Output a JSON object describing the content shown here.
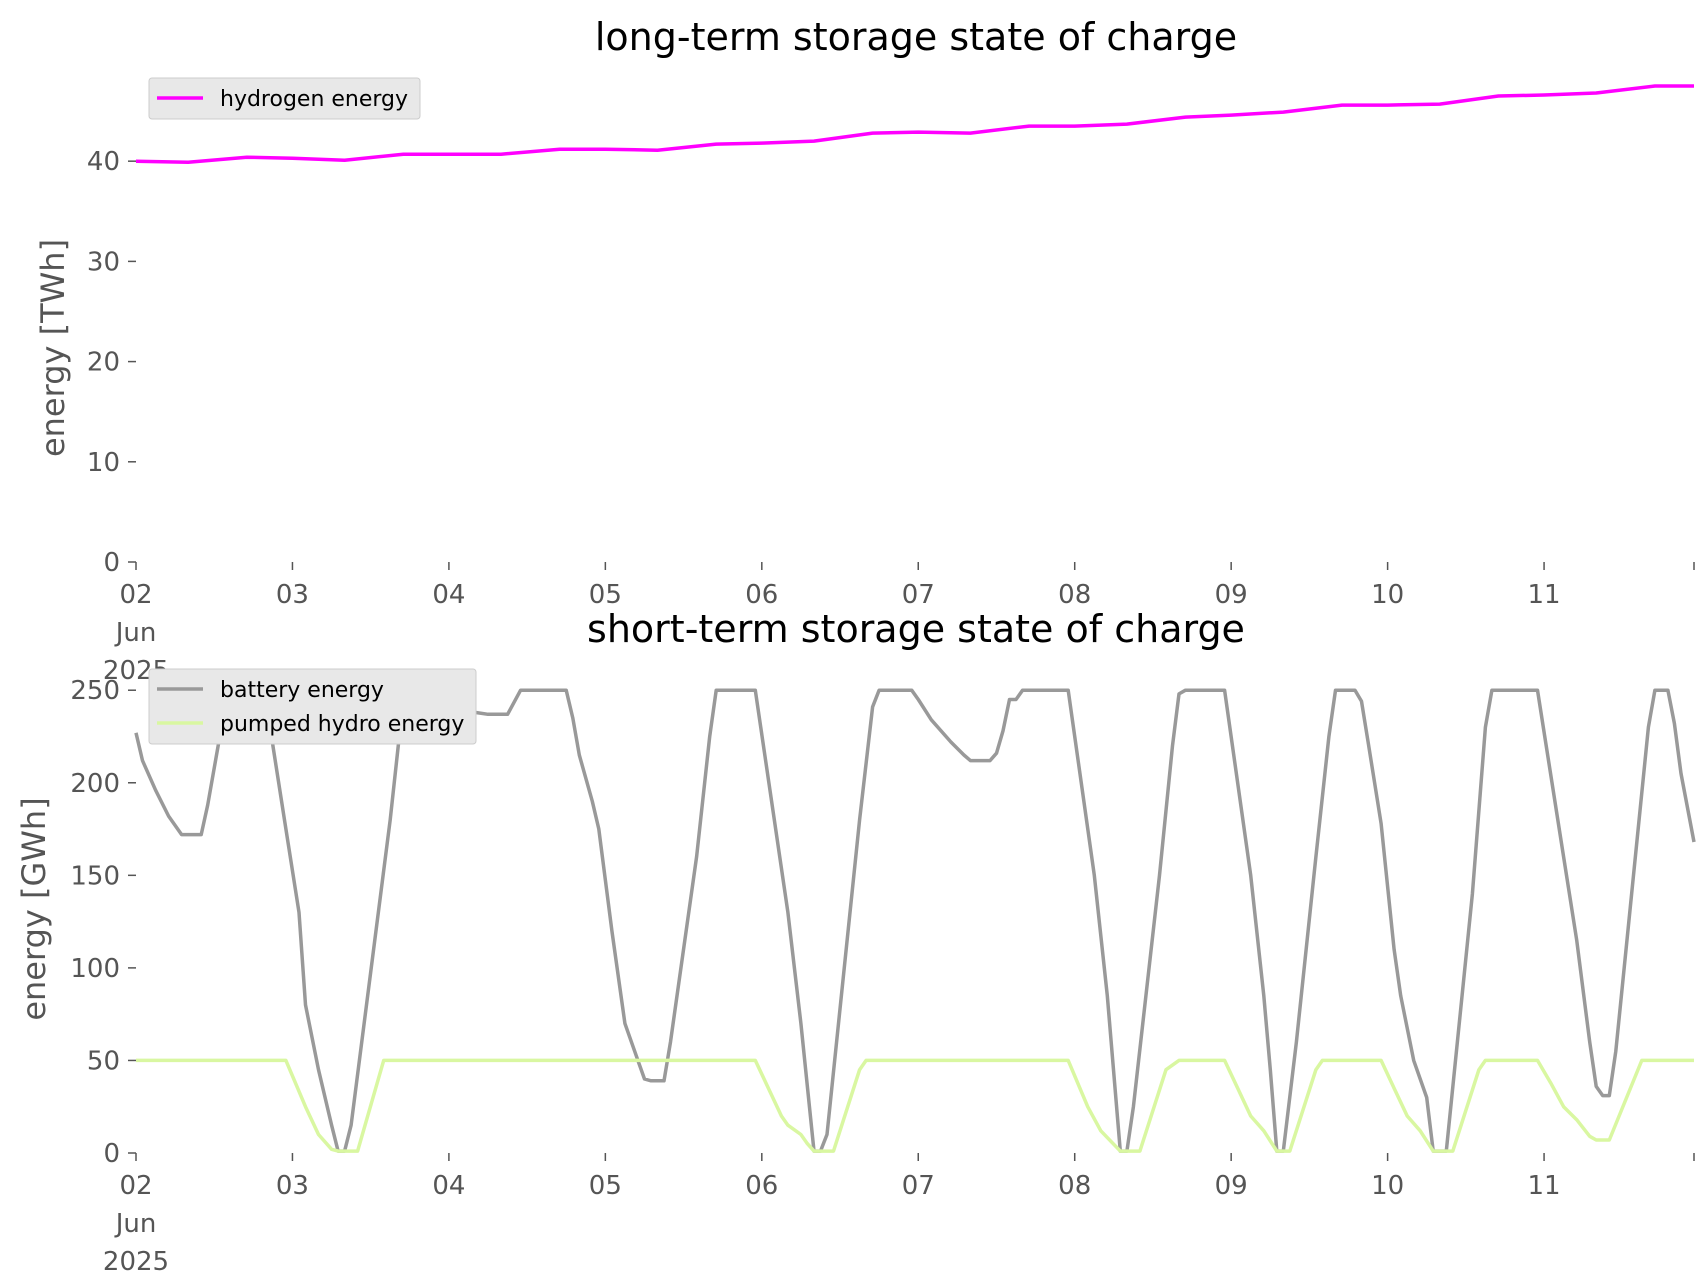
{
  "chart_data": [
    {
      "type": "line",
      "title": "long-term storage state of charge",
      "xlabel": "",
      "ylabel": "energy [TWh]",
      "ylim": [
        0,
        48.5
      ],
      "yticks": [
        "0",
        "10",
        "20",
        "30",
        "40"
      ],
      "xlim": [
        "2025-06-02 00:00",
        "2025-06-11 23:00"
      ],
      "xticks": [
        {
          "date": "2025-06-02",
          "label": "02\nJun\n2025"
        },
        {
          "date": "2025-06-03",
          "label": "03"
        },
        {
          "date": "2025-06-04",
          "label": "04"
        },
        {
          "date": "2025-06-05",
          "label": "05"
        },
        {
          "date": "2025-06-06",
          "label": "06"
        },
        {
          "date": "2025-06-07",
          "label": "07"
        },
        {
          "date": "2025-06-08",
          "label": "08"
        },
        {
          "date": "2025-06-09",
          "label": "09"
        },
        {
          "date": "2025-06-10",
          "label": "10"
        },
        {
          "date": "2025-06-11",
          "label": "11"
        }
      ],
      "grid": false,
      "legend_position": "top-left",
      "series": [
        {
          "name": "hydrogen energy",
          "color": "#ff00ff",
          "points": [
            [
              "2025-06-02 00:00",
              40.0
            ],
            [
              "2025-06-02 08:00",
              39.9
            ],
            [
              "2025-06-02 17:00",
              40.4
            ],
            [
              "2025-06-03 00:00",
              40.3
            ],
            [
              "2025-06-03 08:00",
              40.1
            ],
            [
              "2025-06-03 17:00",
              40.7
            ],
            [
              "2025-06-04 00:00",
              40.7
            ],
            [
              "2025-06-04 08:00",
              40.7
            ],
            [
              "2025-06-04 17:00",
              41.2
            ],
            [
              "2025-06-05 00:00",
              41.2
            ],
            [
              "2025-06-05 08:00",
              41.1
            ],
            [
              "2025-06-05 17:00",
              41.7
            ],
            [
              "2025-06-06 00:00",
              41.8
            ],
            [
              "2025-06-06 08:00",
              42.0
            ],
            [
              "2025-06-06 17:00",
              42.8
            ],
            [
              "2025-06-07 00:00",
              42.9
            ],
            [
              "2025-06-07 08:00",
              42.8
            ],
            [
              "2025-06-07 17:00",
              43.5
            ],
            [
              "2025-06-08 00:00",
              43.5
            ],
            [
              "2025-06-08 08:00",
              43.7
            ],
            [
              "2025-06-08 17:00",
              44.4
            ],
            [
              "2025-06-09 00:00",
              44.6
            ],
            [
              "2025-06-09 08:00",
              44.9
            ],
            [
              "2025-06-09 17:00",
              45.6
            ],
            [
              "2025-06-10 00:00",
              45.6
            ],
            [
              "2025-06-10 08:00",
              45.7
            ],
            [
              "2025-06-10 17:00",
              46.5
            ],
            [
              "2025-06-11 00:00",
              46.6
            ],
            [
              "2025-06-11 08:00",
              46.8
            ],
            [
              "2025-06-11 17:00",
              47.5
            ],
            [
              "2025-06-11 23:00",
              47.5
            ]
          ]
        }
      ]
    },
    {
      "type": "line",
      "title": "short-term storage state of charge",
      "xlabel": "",
      "ylabel": "energy [GWh]",
      "ylim": [
        0,
        262
      ],
      "yticks": [
        "0",
        "50",
        "100",
        "150",
        "200",
        "250"
      ],
      "xlim": [
        "2025-06-02 00:00",
        "2025-06-11 23:00"
      ],
      "xticks": [
        {
          "date": "2025-06-02",
          "label": "02\nJun\n2025"
        },
        {
          "date": "2025-06-03",
          "label": "03"
        },
        {
          "date": "2025-06-04",
          "label": "04"
        },
        {
          "date": "2025-06-05",
          "label": "05"
        },
        {
          "date": "2025-06-06",
          "label": "06"
        },
        {
          "date": "2025-06-07",
          "label": "07"
        },
        {
          "date": "2025-06-08",
          "label": "08"
        },
        {
          "date": "2025-06-09",
          "label": "09"
        },
        {
          "date": "2025-06-10",
          "label": "10"
        },
        {
          "date": "2025-06-11",
          "label": "11"
        }
      ],
      "grid": false,
      "legend_position": "top-left",
      "series": [
        {
          "name": "battery energy",
          "color": "#999999",
          "points": [
            [
              "2025-06-02 00:00",
              227
            ],
            [
              "2025-06-02 01:00",
              212
            ],
            [
              "2025-06-02 03:00",
              196
            ],
            [
              "2025-06-02 05:00",
              182
            ],
            [
              "2025-06-02 07:00",
              172
            ],
            [
              "2025-06-02 10:00",
              172
            ],
            [
              "2025-06-02 11:00",
              188
            ],
            [
              "2025-06-02 14:00",
              248
            ],
            [
              "2025-06-02 20:00",
              248
            ],
            [
              "2025-06-02 21:00",
              220
            ],
            [
              "2025-06-02 23:00",
              175
            ],
            [
              "2025-06-03 01:00",
              130
            ],
            [
              "2025-06-03 02:00",
              80
            ],
            [
              "2025-06-03 04:00",
              45
            ],
            [
              "2025-06-03 06:00",
              15
            ],
            [
              "2025-06-03 07:00",
              1
            ],
            [
              "2025-06-03 08:00",
              1
            ],
            [
              "2025-06-03 09:00",
              15
            ],
            [
              "2025-06-03 15:00",
              180
            ],
            [
              "2025-06-03 17:00",
              245
            ],
            [
              "2025-06-03 18:00",
              250
            ],
            [
              "2025-06-03 23:00",
              250
            ],
            [
              "2025-06-04 01:00",
              243
            ],
            [
              "2025-06-04 04:00",
              238
            ],
            [
              "2025-06-04 06:00",
              237
            ],
            [
              "2025-06-04 09:00",
              237
            ],
            [
              "2025-06-04 11:00",
              250
            ],
            [
              "2025-06-04 18:00",
              250
            ],
            [
              "2025-06-04 19:00",
              235
            ],
            [
              "2025-06-04 20:00",
              215
            ],
            [
              "2025-06-04 22:00",
              190
            ],
            [
              "2025-06-04 23:00",
              175
            ],
            [
              "2025-06-05 01:00",
              120
            ],
            [
              "2025-06-05 03:00",
              70
            ],
            [
              "2025-06-05 05:00",
              50
            ],
            [
              "2025-06-05 06:00",
              40
            ],
            [
              "2025-06-05 07:00",
              39
            ],
            [
              "2025-06-05 09:00",
              39
            ],
            [
              "2025-06-05 10:00",
              60
            ],
            [
              "2025-06-05 14:00",
              160
            ],
            [
              "2025-06-05 16:00",
              225
            ],
            [
              "2025-06-05 17:00",
              250
            ],
            [
              "2025-06-05 23:00",
              250
            ],
            [
              "2025-06-06 04:00",
              130
            ],
            [
              "2025-06-06 06:00",
              70
            ],
            [
              "2025-06-06 08:00",
              1
            ],
            [
              "2025-06-06 09:00",
              1
            ],
            [
              "2025-06-06 10:00",
              10
            ],
            [
              "2025-06-06 15:00",
              180
            ],
            [
              "2025-06-06 17:00",
              241
            ],
            [
              "2025-06-06 18:00",
              250
            ],
            [
              "2025-06-06 23:00",
              250
            ],
            [
              "2025-06-07 00:00",
              245
            ],
            [
              "2025-06-07 02:00",
              234
            ],
            [
              "2025-06-07 05:00",
              222
            ],
            [
              "2025-06-07 07:00",
              215
            ],
            [
              "2025-06-07 08:00",
              212
            ],
            [
              "2025-06-07 11:00",
              212
            ],
            [
              "2025-06-07 12:00",
              216
            ],
            [
              "2025-06-07 13:00",
              228
            ],
            [
              "2025-06-07 14:00",
              245
            ],
            [
              "2025-06-07 15:00",
              245
            ],
            [
              "2025-06-07 16:00",
              250
            ],
            [
              "2025-06-07 23:00",
              250
            ],
            [
              "2025-06-08 03:00",
              150
            ],
            [
              "2025-06-08 05:00",
              85
            ],
            [
              "2025-06-08 07:00",
              1
            ],
            [
              "2025-06-08 08:00",
              1
            ],
            [
              "2025-06-08 09:00",
              25
            ],
            [
              "2025-06-08 13:00",
              150
            ],
            [
              "2025-06-08 15:00",
              220
            ],
            [
              "2025-06-08 16:00",
              248
            ],
            [
              "2025-06-08 17:00",
              250
            ],
            [
              "2025-06-08 23:00",
              250
            ],
            [
              "2025-06-09 03:00",
              150
            ],
            [
              "2025-06-09 05:00",
              85
            ],
            [
              "2025-06-09 06:00",
              45
            ],
            [
              "2025-06-09 07:00",
              1
            ],
            [
              "2025-06-09 08:00",
              1
            ],
            [
              "2025-06-09 10:00",
              60
            ],
            [
              "2025-06-09 13:00",
              160
            ],
            [
              "2025-06-09 15:00",
              225
            ],
            [
              "2025-06-09 16:00",
              250
            ],
            [
              "2025-06-09 19:00",
              250
            ],
            [
              "2025-06-09 20:00",
              244
            ],
            [
              "2025-06-09 21:00",
              222
            ],
            [
              "2025-06-09 23:00",
              178
            ],
            [
              "2025-06-10 01:00",
              110
            ],
            [
              "2025-06-10 02:00",
              85
            ],
            [
              "2025-06-10 04:00",
              50
            ],
            [
              "2025-06-10 06:00",
              30
            ],
            [
              "2025-06-10 07:00",
              1
            ],
            [
              "2025-06-10 09:00",
              1
            ],
            [
              "2025-06-10 13:00",
              140
            ],
            [
              "2025-06-10 15:00",
              230
            ],
            [
              "2025-06-10 16:00",
              250
            ],
            [
              "2025-06-10 23:00",
              250
            ],
            [
              "2025-06-11 03:00",
              160
            ],
            [
              "2025-06-11 05:00",
              115
            ],
            [
              "2025-06-11 07:00",
              60
            ],
            [
              "2025-06-11 08:00",
              36
            ],
            [
              "2025-06-11 09:00",
              31
            ],
            [
              "2025-06-11 10:00",
              31
            ],
            [
              "2025-06-11 11:00",
              55
            ],
            [
              "2025-06-11 16:00",
              230
            ],
            [
              "2025-06-11 17:00",
              250
            ],
            [
              "2025-06-11 19:00",
              250
            ],
            [
              "2025-06-11 20:00",
              232
            ],
            [
              "2025-06-11 21:00",
              205
            ],
            [
              "2025-06-11 23:00",
              168
            ]
          ]
        },
        {
          "name": "pumped hydro energy",
          "color": "#d9f7a1",
          "points": [
            [
              "2025-06-02 00:00",
              50
            ],
            [
              "2025-06-02 23:00",
              50
            ],
            [
              "2025-06-03 02:00",
              25
            ],
            [
              "2025-06-03 04:00",
              10
            ],
            [
              "2025-06-03 06:00",
              2
            ],
            [
              "2025-06-03 07:00",
              1
            ],
            [
              "2025-06-03 10:00",
              1
            ],
            [
              "2025-06-03 14:00",
              50
            ],
            [
              "2025-06-05 23:00",
              50
            ],
            [
              "2025-06-06 03:00",
              20
            ],
            [
              "2025-06-06 04:00",
              15
            ],
            [
              "2025-06-06 06:00",
              10
            ],
            [
              "2025-06-06 07:00",
              5
            ],
            [
              "2025-06-06 08:00",
              1
            ],
            [
              "2025-06-06 11:00",
              1
            ],
            [
              "2025-06-06 15:00",
              45
            ],
            [
              "2025-06-06 16:00",
              50
            ],
            [
              "2025-06-07 23:00",
              50
            ],
            [
              "2025-06-08 02:00",
              25
            ],
            [
              "2025-06-08 04:00",
              12
            ],
            [
              "2025-06-08 07:00",
              1
            ],
            [
              "2025-06-08 10:00",
              1
            ],
            [
              "2025-06-08 14:00",
              45
            ],
            [
              "2025-06-08 16:00",
              50
            ],
            [
              "2025-06-08 23:00",
              50
            ],
            [
              "2025-06-09 01:00",
              35
            ],
            [
              "2025-06-09 03:00",
              20
            ],
            [
              "2025-06-09 05:00",
              12
            ],
            [
              "2025-06-09 07:00",
              1
            ],
            [
              "2025-06-09 09:00",
              1
            ],
            [
              "2025-06-09 13:00",
              45
            ],
            [
              "2025-06-09 14:00",
              50
            ],
            [
              "2025-06-09 23:00",
              50
            ],
            [
              "2025-06-10 01:00",
              35
            ],
            [
              "2025-06-10 03:00",
              20
            ],
            [
              "2025-06-10 05:00",
              12
            ],
            [
              "2025-06-10 07:00",
              1
            ],
            [
              "2025-06-10 10:00",
              1
            ],
            [
              "2025-06-10 14:00",
              45
            ],
            [
              "2025-06-10 15:00",
              50
            ],
            [
              "2025-06-10 23:00",
              50
            ],
            [
              "2025-06-11 01:00",
              38
            ],
            [
              "2025-06-11 03:00",
              25
            ],
            [
              "2025-06-11 05:00",
              18
            ],
            [
              "2025-06-11 07:00",
              9
            ],
            [
              "2025-06-11 08:00",
              7
            ],
            [
              "2025-06-11 10:00",
              7
            ],
            [
              "2025-06-11 15:00",
              50
            ],
            [
              "2025-06-11 23:00",
              50
            ]
          ]
        }
      ]
    }
  ]
}
